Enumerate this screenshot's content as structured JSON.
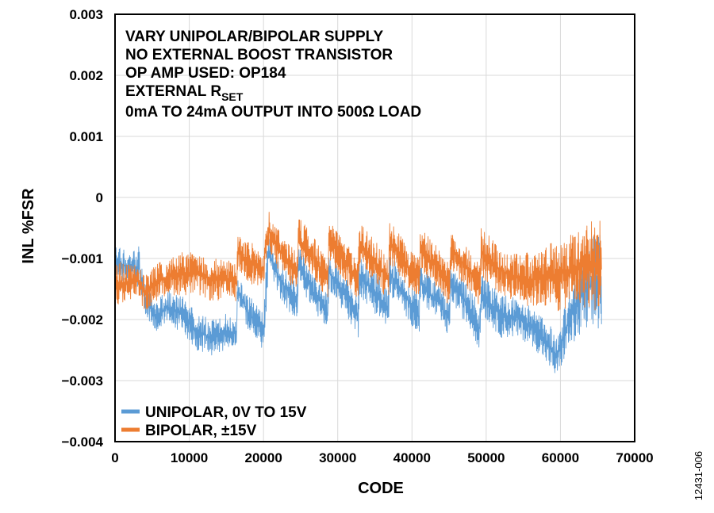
{
  "figure_id": "12431-006",
  "chart_data": {
    "type": "line",
    "xlabel": "CODE",
    "ylabel": "INL %FSR",
    "xlim": [
      0,
      70000
    ],
    "ylim": [
      -0.004,
      0.003
    ],
    "x_ticks": [
      0,
      10000,
      20000,
      30000,
      40000,
      50000,
      60000,
      70000
    ],
    "x_tick_labels": [
      "0",
      "10000",
      "20000",
      "30000",
      "40000",
      "50000",
      "60000",
      "70000"
    ],
    "y_ticks": [
      0.003,
      0.002,
      0.001,
      0,
      -0.001,
      -0.002,
      -0.003,
      -0.004
    ],
    "y_tick_labels": [
      "0.003",
      "0.002",
      "0.001",
      "0",
      "−0.001",
      "−0.002",
      "−0.003",
      "−0.004"
    ],
    "grid": true,
    "legend_position": "bottom-left",
    "annotations": [
      "VARY UNIPOLAR/BIPOLAR SUPPLY",
      "NO EXTERNAL BOOST TRANSISTOR",
      "OP AMP USED: OP184",
      "EXTERNAL R",
      "SET",
      "0mA TO 24mA OUTPUT INTO 500Ω LOAD"
    ],
    "series": [
      {
        "name": "UNIPOLAR, 0V TO 15V",
        "color": "#5b9bd5",
        "x": [
          0,
          1500,
          3200,
          4000,
          5500,
          7000,
          9000,
          11000,
          13000,
          15000,
          16384,
          16500,
          18000,
          20000,
          20480,
          20600,
          22000,
          24576,
          24700,
          26500,
          28672,
          28800,
          31000,
          32768,
          32900,
          35000,
          36864,
          37000,
          39000,
          40960,
          41100,
          43500,
          45056,
          45200,
          47500,
          49152,
          49300,
          52000,
          54000,
          56000,
          58000,
          59500,
          61000,
          63000,
          65535
        ],
        "low": [
          -0.0013,
          -0.0014,
          -0.0015,
          -0.0019,
          -0.0022,
          -0.0021,
          -0.0022,
          -0.0025,
          -0.0026,
          -0.0025,
          -0.0024,
          -0.0017,
          -0.0022,
          -0.0025,
          -0.0019,
          -0.0011,
          -0.0016,
          -0.0021,
          -0.0014,
          -0.0018,
          -0.0022,
          -0.0015,
          -0.0019,
          -0.0023,
          -0.0016,
          -0.0019,
          -0.0022,
          -0.0016,
          -0.0019,
          -0.0023,
          -0.0017,
          -0.002,
          -0.0023,
          -0.0017,
          -0.0021,
          -0.0025,
          -0.0019,
          -0.0023,
          -0.0023,
          -0.0024,
          -0.0027,
          -0.003,
          -0.0025,
          -0.0023,
          -0.0022
        ],
        "high": [
          -0.0007,
          -0.0009,
          -0.0008,
          -0.0014,
          -0.0017,
          -0.0015,
          -0.0016,
          -0.0019,
          -0.002,
          -0.0019,
          -0.002,
          -0.0013,
          -0.0016,
          -0.0019,
          -0.0008,
          -0.0006,
          -0.001,
          -0.0014,
          -0.0008,
          -0.0012,
          -0.0016,
          -0.0009,
          -0.0013,
          -0.0016,
          -0.0009,
          -0.0012,
          -0.0015,
          -0.0009,
          -0.0013,
          -0.0016,
          -0.0011,
          -0.0014,
          -0.0017,
          -0.0011,
          -0.0014,
          -0.0018,
          -0.0012,
          -0.0016,
          -0.0016,
          -0.0018,
          -0.002,
          -0.0022,
          -0.0016,
          -0.0008,
          -0.0004
        ]
      },
      {
        "name": "BIPOLAR, ±15V",
        "color": "#ed7d31",
        "x": [
          0,
          1500,
          3200,
          4000,
          5500,
          7000,
          9000,
          11000,
          13000,
          15000,
          16384,
          16500,
          18000,
          20000,
          20480,
          20600,
          22000,
          24576,
          24700,
          26500,
          28672,
          28800,
          31000,
          32768,
          32900,
          35000,
          36864,
          37000,
          39000,
          40960,
          41100,
          43500,
          45056,
          45200,
          47500,
          49152,
          49300,
          52000,
          54000,
          56000,
          58000,
          59500,
          61000,
          63000,
          65535
        ],
        "low": [
          -0.0018,
          -0.0017,
          -0.0016,
          -0.0019,
          -0.0017,
          -0.0016,
          -0.0016,
          -0.0016,
          -0.0017,
          -0.0017,
          -0.0017,
          -0.0012,
          -0.0014,
          -0.0015,
          -0.001,
          -0.0008,
          -0.0012,
          -0.0016,
          -0.001,
          -0.0013,
          -0.0017,
          -0.001,
          -0.0014,
          -0.0017,
          -0.0011,
          -0.0014,
          -0.0017,
          -0.0011,
          -0.0014,
          -0.0017,
          -0.0012,
          -0.0015,
          -0.0018,
          -0.0012,
          -0.0015,
          -0.0018,
          -0.0013,
          -0.0016,
          -0.0017,
          -0.0018,
          -0.0018,
          -0.0019,
          -0.0018,
          -0.0018,
          -0.0019
        ],
        "high": [
          -0.001,
          -0.0011,
          -0.0011,
          -0.0013,
          -0.0011,
          -0.001,
          -0.0009,
          -0.0009,
          -0.001,
          -0.001,
          -0.0011,
          -0.0006,
          -0.0007,
          -0.0009,
          -0.0003,
          -0.0002,
          -0.0005,
          -0.0009,
          -0.0003,
          -0.0006,
          -0.001,
          -0.0004,
          -0.0007,
          -0.001,
          -0.0004,
          -0.0007,
          -0.001,
          -0.0004,
          -0.0007,
          -0.001,
          -0.0005,
          -0.0008,
          -0.0011,
          -0.0005,
          -0.0008,
          -0.0011,
          -0.0005,
          -0.0008,
          -0.0009,
          -0.0009,
          -0.0008,
          -0.0007,
          -0.0006,
          -0.0004,
          -0.0003
        ]
      }
    ]
  }
}
